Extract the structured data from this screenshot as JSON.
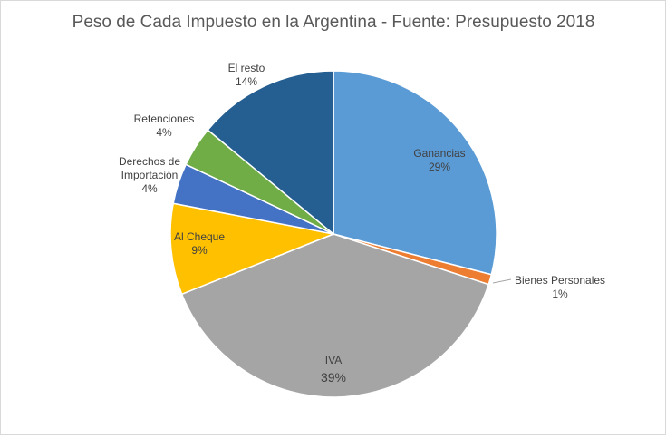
{
  "chart_data": {
    "type": "pie",
    "title": "Peso de Cada Impuesto en la Argentina - Fuente: Presupuesto 2018",
    "start_angle": "12 o'clock, clockwise",
    "slices": [
      {
        "label": "Ganancias",
        "value": 29,
        "display": "29%",
        "color": "#5B9BD5"
      },
      {
        "label": "Bienes Personales",
        "value": 1,
        "display": "1%",
        "color": "#ED7D31"
      },
      {
        "label": "IVA",
        "value": 39,
        "display": "39%",
        "color": "#A5A5A5"
      },
      {
        "label": "Al Cheque",
        "value": 9,
        "display": "9%",
        "color": "#FFC000"
      },
      {
        "label": "Derechos de Importación",
        "value": 4,
        "display": "4%",
        "color": "#4472C4"
      },
      {
        "label": "Retenciones",
        "value": 4,
        "display": "4%",
        "color": "#70AD47"
      },
      {
        "label": "El resto",
        "value": 14,
        "display": "14%",
        "color": "#255E91"
      }
    ],
    "legend": "none",
    "data_labels": "category and percentage"
  }
}
